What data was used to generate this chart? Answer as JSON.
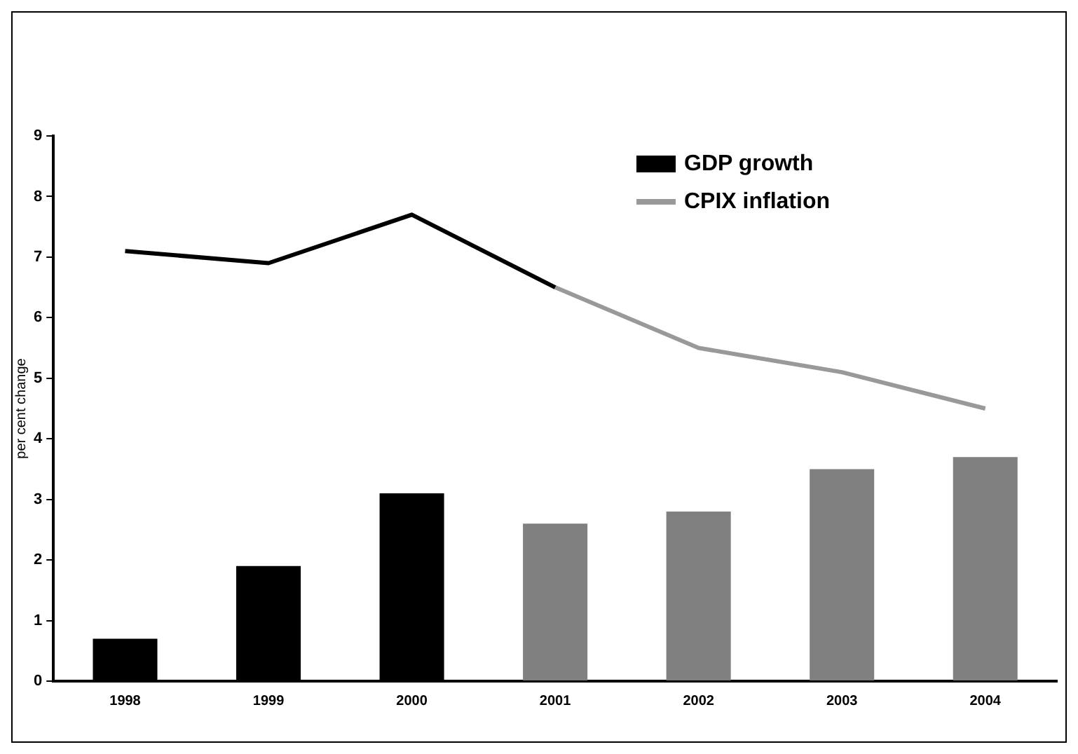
{
  "chart_data": {
    "type": "bar",
    "ylabel": "per cent change",
    "categories": [
      "1998",
      "1999",
      "2000",
      "2001",
      "2002",
      "2003",
      "2004"
    ],
    "series": [
      {
        "name": "GDP growth",
        "color": "#000000",
        "colors": [
          "#000000",
          "#000000",
          "#000000",
          "#808080",
          "#808080",
          "#808080",
          "#808080"
        ],
        "values": [
          0.7,
          1.9,
          3.1,
          2.6,
          2.8,
          3.5,
          3.7
        ]
      },
      {
        "type": "line",
        "color": "#000000",
        "values": [
          7.1,
          6.9,
          7.7,
          6.5,
          null,
          null,
          null
        ]
      },
      {
        "name": "CPIX inflation",
        "type": "line",
        "color": "#999999",
        "values": [
          null,
          null,
          null,
          6.5,
          5.5,
          5.1,
          4.5
        ]
      }
    ],
    "ylim": [
      0,
      9
    ],
    "yticks": [
      0,
      1,
      2,
      3,
      4,
      5,
      6,
      7,
      8,
      9
    ],
    "grid": false,
    "legend": "top right",
    "marker": "none"
  }
}
